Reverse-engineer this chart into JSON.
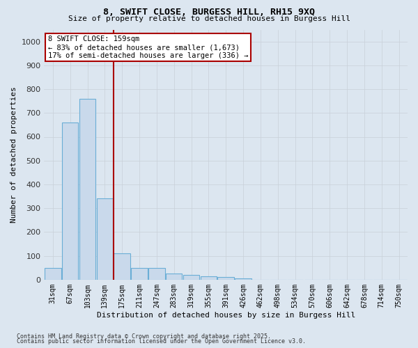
{
  "title1": "8, SWIFT CLOSE, BURGESS HILL, RH15 9XQ",
  "title2": "Size of property relative to detached houses in Burgess Hill",
  "xlabel": "Distribution of detached houses by size in Burgess Hill",
  "ylabel": "Number of detached properties",
  "bin_labels": [
    "31sqm",
    "67sqm",
    "103sqm",
    "139sqm",
    "175sqm",
    "211sqm",
    "247sqm",
    "283sqm",
    "319sqm",
    "355sqm",
    "391sqm",
    "426sqm",
    "462sqm",
    "498sqm",
    "534sqm",
    "570sqm",
    "606sqm",
    "642sqm",
    "678sqm",
    "714sqm",
    "750sqm"
  ],
  "bar_values": [
    50,
    660,
    760,
    340,
    110,
    50,
    50,
    25,
    20,
    15,
    10,
    5,
    0,
    0,
    0,
    0,
    0,
    0,
    0,
    0,
    0
  ],
  "bar_color": "#c9d9eb",
  "bar_edge_color": "#6aaed6",
  "grid_color": "#c8d0d8",
  "bg_color": "#dce6f0",
  "vline_x_index": 3.5,
  "vline_color": "#aa0000",
  "annotation_line1": "8 SWIFT CLOSE: 159sqm",
  "annotation_line2": "← 83% of detached houses are smaller (1,673)",
  "annotation_line3": "17% of semi-detached houses are larger (336) →",
  "annotation_box_color": "#ffffff",
  "annotation_box_edge": "#aa0000",
  "footer1": "Contains HM Land Registry data © Crown copyright and database right 2025.",
  "footer2": "Contains public sector information licensed under the Open Government Licence v3.0.",
  "ylim": [
    0,
    1050
  ],
  "yticks": [
    0,
    100,
    200,
    300,
    400,
    500,
    600,
    700,
    800,
    900,
    1000
  ]
}
